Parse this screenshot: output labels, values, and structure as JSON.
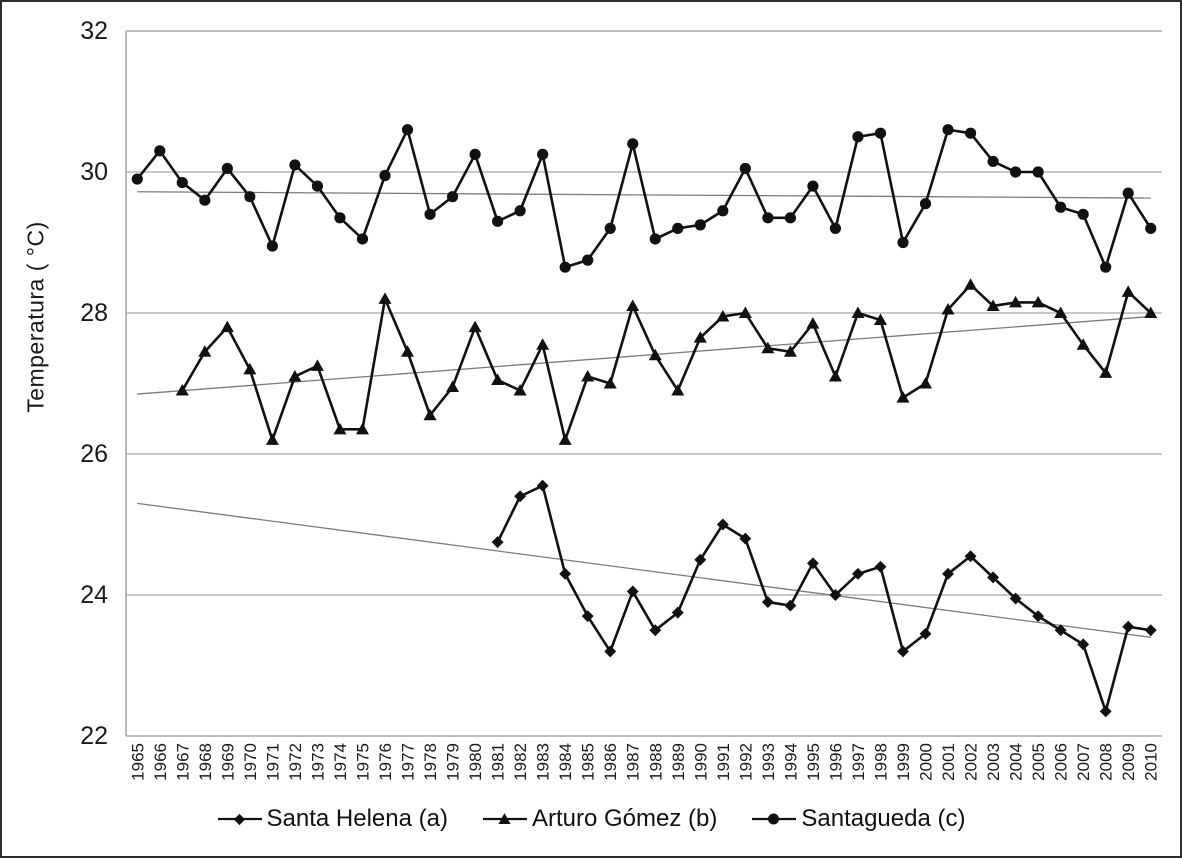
{
  "chart_data": {
    "type": "line",
    "title": "",
    "xlabel": "",
    "ylabel": "Temperatura ( °C)",
    "ylim": [
      22,
      32
    ],
    "yticks": [
      22,
      24,
      26,
      28,
      30,
      32
    ],
    "grid": "horizontal",
    "legend_position": "bottom",
    "x": [
      1965,
      1966,
      1967,
      1968,
      1969,
      1970,
      1971,
      1972,
      1973,
      1974,
      1975,
      1976,
      1977,
      1978,
      1979,
      1980,
      1981,
      1982,
      1983,
      1984,
      1985,
      1986,
      1987,
      1988,
      1989,
      1990,
      1991,
      1992,
      1993,
      1994,
      1995,
      1996,
      1997,
      1998,
      1999,
      2000,
      2001,
      2002,
      2003,
      2004,
      2005,
      2006,
      2007,
      2008,
      2009,
      2010
    ],
    "series": [
      {
        "name": "Santa Helena (a)",
        "marker": "diamond",
        "values": [
          null,
          null,
          null,
          null,
          null,
          null,
          null,
          null,
          null,
          null,
          null,
          null,
          null,
          null,
          null,
          null,
          24.75,
          25.4,
          25.55,
          24.3,
          23.7,
          23.2,
          24.05,
          23.5,
          23.75,
          24.5,
          25.0,
          24.8,
          23.9,
          23.85,
          24.45,
          24.0,
          24.3,
          24.4,
          23.2,
          23.45,
          24.3,
          24.55,
          24.25,
          23.95,
          23.7,
          23.5,
          23.3,
          22.35,
          23.55,
          23.5
        ]
      },
      {
        "name": "Arturo Gómez (b)",
        "marker": "triangle",
        "values": [
          null,
          null,
          26.9,
          27.45,
          27.8,
          27.2,
          26.2,
          27.1,
          27.25,
          26.35,
          26.35,
          28.2,
          27.45,
          26.55,
          26.95,
          27.8,
          27.05,
          26.9,
          27.55,
          26.2,
          27.1,
          27.0,
          28.1,
          27.4,
          26.9,
          27.65,
          27.95,
          28.0,
          27.5,
          27.45,
          27.85,
          27.1,
          28.0,
          27.9,
          26.8,
          27.0,
          28.05,
          28.4,
          28.1,
          28.15,
          28.15,
          28.0,
          27.55,
          27.15,
          28.3,
          28.0
        ]
      },
      {
        "name": "Santagueda (c)",
        "marker": "circle",
        "values": [
          29.9,
          30.3,
          29.85,
          29.6,
          30.05,
          29.65,
          28.95,
          30.1,
          29.8,
          29.35,
          29.05,
          29.95,
          30.6,
          29.4,
          29.65,
          30.25,
          29.3,
          29.45,
          30.25,
          28.65,
          28.75,
          29.2,
          30.4,
          29.05,
          29.2,
          29.25,
          29.45,
          30.05,
          29.35,
          29.35,
          29.8,
          29.2,
          30.5,
          30.55,
          29.0,
          29.55,
          30.6,
          30.55,
          30.15,
          30.0,
          30.0,
          29.5,
          29.4,
          28.65,
          29.7,
          29.2
        ]
      }
    ],
    "trendlines": [
      {
        "series": "Santa Helena (a)",
        "start_value": 25.3,
        "end_value": 23.4
      },
      {
        "series": "Arturo Gómez (b)",
        "start_value": 26.85,
        "end_value": 27.95
      },
      {
        "series": "Santagueda (c)",
        "start_value": 29.72,
        "end_value": 29.63
      }
    ],
    "colors": {
      "series_line": "#111111",
      "marker_fill": "#111111",
      "gridline": "#a8a8a8",
      "trend_line": "#7c7c7c",
      "axis_text": "#1a1a1a"
    }
  }
}
